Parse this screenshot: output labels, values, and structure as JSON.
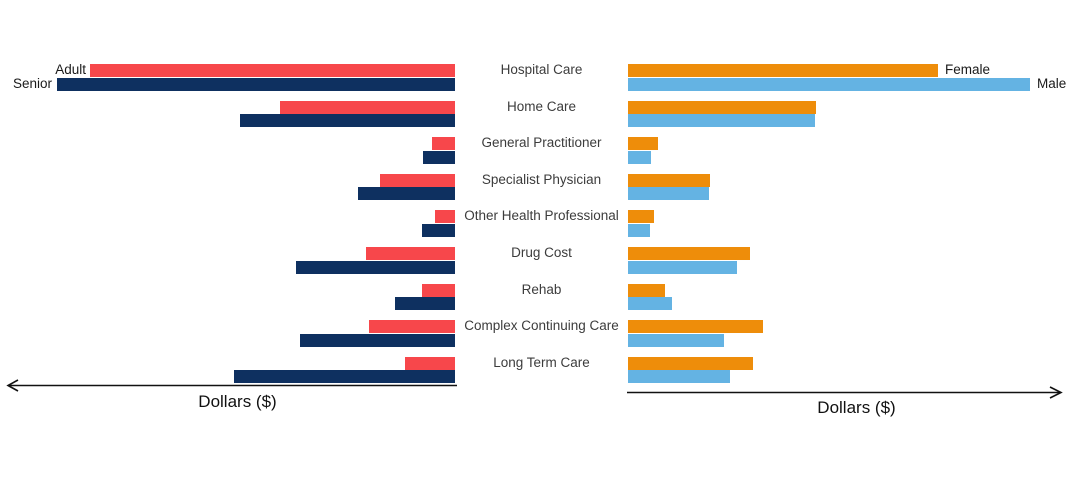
{
  "chart_data": {
    "type": "bar",
    "variant": "diverging-horizontal-bidirectional",
    "title": "",
    "categories": [
      "Hospital Care",
      "Home Care",
      "General Practitioner",
      "Specialist Physician",
      "Other Health Professional",
      "Drug Cost",
      "Rehab",
      "Complex Continuing Care",
      "Long Term Care"
    ],
    "value_axis": {
      "tick_labels": [],
      "units": "dollars",
      "note_scale": "relative bar lengths in source pixels; no numeric ticks shown"
    },
    "left_panel": {
      "axis_label": "Dollars ($)",
      "direction": "left",
      "series": [
        {
          "name": "Adult",
          "color": "#F7474B",
          "values": [
            365,
            175,
            23,
            75,
            20,
            89,
            33,
            86,
            50
          ]
        },
        {
          "name": "Senior",
          "color": "#0E3060",
          "values": [
            398,
            215,
            32,
            97,
            33,
            159,
            60,
            155,
            221
          ]
        }
      ]
    },
    "right_panel": {
      "axis_label": "Dollars ($)",
      "direction": "right",
      "series": [
        {
          "name": "Female",
          "color": "#EE8D0A",
          "values": [
            310,
            188,
            30,
            82,
            26,
            122,
            37,
            135,
            125
          ]
        },
        {
          "name": "Male",
          "color": "#64B3E3",
          "values": [
            402,
            187,
            23,
            81,
            22,
            109,
            44,
            96,
            102
          ]
        }
      ]
    },
    "legend": {
      "position": "inline-first-row",
      "entries": [
        "Adult",
        "Senior",
        "Female",
        "Male"
      ]
    }
  }
}
